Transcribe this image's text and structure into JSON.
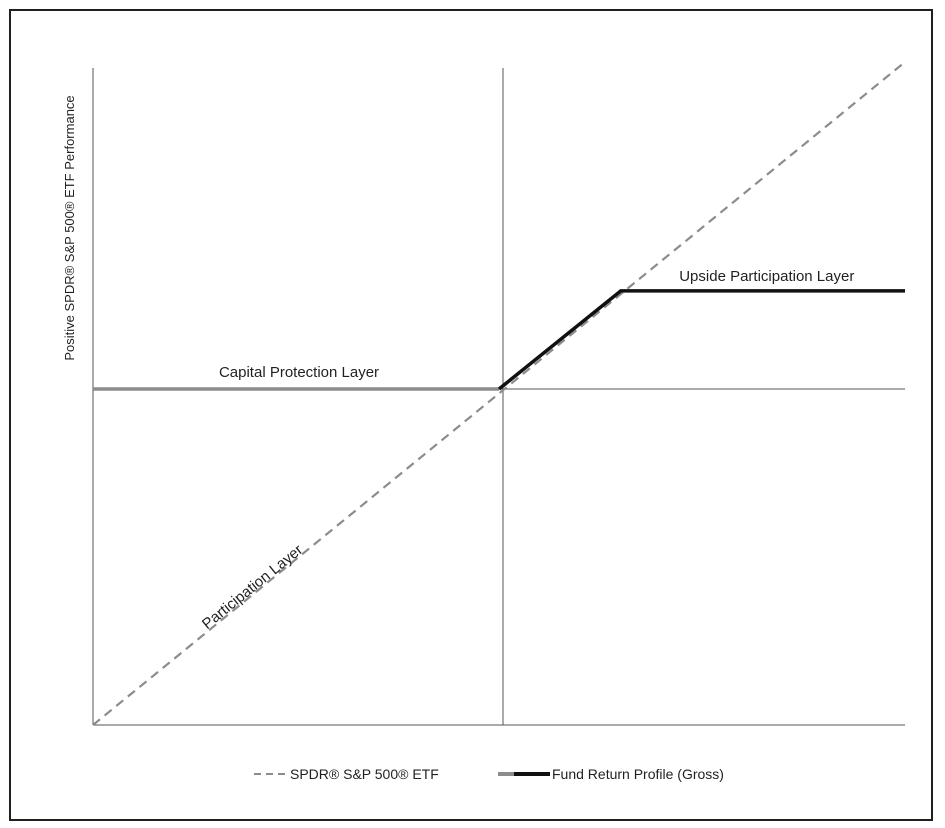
{
  "chart_data": {
    "type": "line",
    "title": "",
    "ylabel": "Positive SPDR® S&P 500® ETF Performance",
    "xlabel": "",
    "xlim": [
      -100,
      100
    ],
    "ylim": [
      -100,
      100
    ],
    "grid": false,
    "axes": {
      "x_at": 0,
      "y_at": 0
    },
    "series": [
      {
        "name": "SPDR® S&P 500® ETF",
        "style": "dashed",
        "color": "#8c8c8c",
        "x": [
          -100,
          100
        ],
        "y": [
          -100,
          100
        ]
      },
      {
        "name": "Fund Return Profile (Gross)",
        "style": "solid",
        "segments": [
          {
            "color": "#8c8c8c",
            "x": [
              -100,
              0
            ],
            "y": [
              0,
              0
            ]
          },
          {
            "color": "#111111",
            "x": [
              0,
              30,
              100
            ],
            "y": [
              0,
              30,
              30
            ]
          }
        ]
      }
    ],
    "annotations": [
      {
        "text": "Capital Protection Layer",
        "x": -50,
        "y": 0
      },
      {
        "text": "Upside Participation Layer",
        "x": 63,
        "y": 30
      },
      {
        "text": "Participation Layer",
        "x": -60,
        "y": -60
      }
    ],
    "legend": {
      "position": "bottom",
      "items": [
        {
          "label": "SPDR® S&P 500® ETF"
        },
        {
          "label": "Fund Return Profile (Gross)"
        }
      ]
    }
  }
}
